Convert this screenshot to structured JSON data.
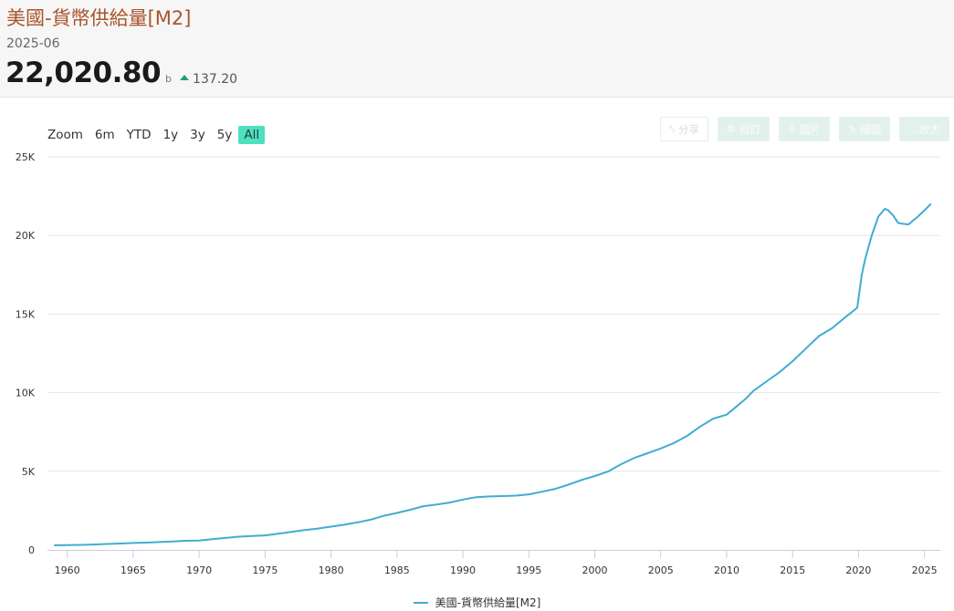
{
  "header": {
    "title": "美國-貨幣供給量[M2]",
    "date": "2025-06",
    "value": "22,020.80",
    "unit": "b",
    "change": "137.20",
    "change_direction": "up",
    "up_color": "#1aa07a"
  },
  "zoom": {
    "label": "Zoom",
    "buttons": [
      "6m",
      "YTD",
      "1y",
      "3y",
      "5y",
      "All"
    ],
    "active": "All",
    "active_color": "#4ee0c0"
  },
  "toolbar": [
    {
      "label": "分享",
      "icon": "share-icon"
    },
    {
      "label": "自訂",
      "icon": "gear-icon"
    },
    {
      "label": "圖片",
      "icon": "download-icon"
    },
    {
      "label": "繪圖",
      "icon": "pencil-icon"
    },
    {
      "label": "放大",
      "icon": "expand-icon"
    }
  ],
  "chart_data": {
    "type": "line",
    "title": "",
    "xlabel": "",
    "ylabel": "",
    "x_ticks": [
      1960,
      1965,
      1970,
      1975,
      1980,
      1985,
      1990,
      1995,
      2000,
      2005,
      2010,
      2015,
      2020,
      2025
    ],
    "y_ticks": [
      0,
      5000,
      10000,
      15000,
      20000,
      25000
    ],
    "y_tick_labels": [
      "0",
      "5K",
      "10K",
      "15K",
      "20K",
      "25K"
    ],
    "xlim": [
      1958.5,
      2026.2
    ],
    "ylim": [
      0,
      25000
    ],
    "grid": true,
    "legend_position": "bottom-center",
    "series": [
      {
        "name": "美國-貨幣供給量[M2]",
        "color": "#42acd1",
        "x": [
          1959,
          1960,
          1961,
          1962,
          1963,
          1964,
          1965,
          1966,
          1967,
          1968,
          1969,
          1970,
          1971,
          1972,
          1973,
          1974,
          1975,
          1976,
          1977,
          1978,
          1979,
          1980,
          1981,
          1982,
          1983,
          1984,
          1985,
          1986,
          1987,
          1988,
          1989,
          1990,
          1991,
          1992,
          1993,
          1994,
          1995,
          1996,
          1997,
          1998,
          1999,
          2000,
          2001,
          2002,
          2003,
          2004,
          2005,
          2006,
          2007,
          2008,
          2008.7,
          2009,
          2010,
          2011,
          2011.5,
          2012,
          2013,
          2014,
          2015,
          2016,
          2017,
          2018,
          2019,
          2019.9,
          2020.25,
          2020.5,
          2021,
          2021.5,
          2022,
          2022.25,
          2022.6,
          2023,
          2023.3,
          2023.8,
          2024,
          2024.5,
          2025,
          2025.5
        ],
        "values": [
          290,
          305,
          320,
          345,
          375,
          405,
          440,
          465,
          500,
          540,
          580,
          600,
          680,
          760,
          840,
          880,
          920,
          1030,
          1150,
          1260,
          1360,
          1480,
          1600,
          1750,
          1920,
          2170,
          2350,
          2550,
          2780,
          2880,
          3010,
          3200,
          3350,
          3400,
          3420,
          3450,
          3530,
          3700,
          3880,
          4150,
          4450,
          4700,
          4980,
          5450,
          5850,
          6150,
          6450,
          6800,
          7250,
          7850,
          8200,
          8350,
          8600,
          9300,
          9650,
          10100,
          10700,
          11300,
          12000,
          12800,
          13600,
          14100,
          14800,
          15400,
          17500,
          18500,
          20000,
          21200,
          21700,
          21600,
          21300,
          20800,
          20750,
          20700,
          20850,
          21200,
          21600,
          22020.8
        ]
      }
    ]
  }
}
